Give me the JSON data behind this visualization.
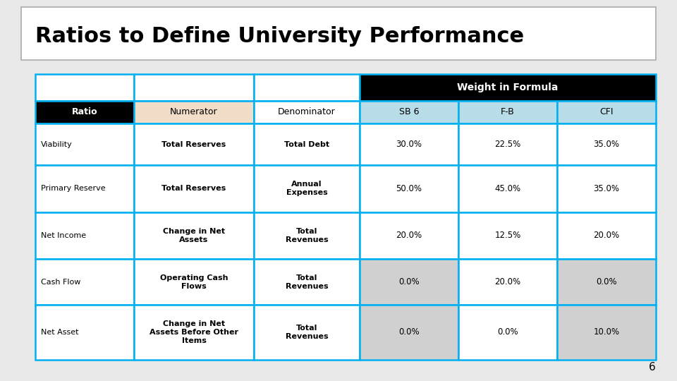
{
  "title": "Ratios to Define University Performance",
  "page_number": "6",
  "table": {
    "rows": [
      {
        "ratio": "Viability",
        "numerator": "Total Reserves",
        "denominator": "Total Debt",
        "sb6": "30.0%",
        "fb": "22.5%",
        "cfi": "35.0%",
        "shaded": false
      },
      {
        "ratio": "Primary Reserve",
        "numerator": "Total Reserves",
        "denominator": "Annual\nExpenses",
        "sb6": "50.0%",
        "fb": "45.0%",
        "cfi": "35.0%",
        "shaded": false
      },
      {
        "ratio": "Net Income",
        "numerator": "Change in Net\nAssets",
        "denominator": "Total\nRevenues",
        "sb6": "20.0%",
        "fb": "12.5%",
        "cfi": "20.0%",
        "shaded": false
      },
      {
        "ratio": "Cash Flow",
        "numerator": "Operating Cash\nFlows",
        "denominator": "Total\nRevenues",
        "sb6": "0.0%",
        "fb": "20.0%",
        "cfi": "0.0%",
        "shaded": true
      },
      {
        "ratio": "Net Asset",
        "numerator": "Change in Net\nAssets Before Other\nItems",
        "denominator": "Total\nRevenues",
        "sb6": "0.0%",
        "fb": "0.0%",
        "cfi": "10.0%",
        "shaded": true
      }
    ],
    "colors": {
      "header1_bg": "#000000",
      "header1_text": "#ffffff",
      "header2_ratio_bg": "#000000",
      "header2_ratio_text": "#ffffff",
      "header2_num_bg": "#f2ddc8",
      "header2_num_text": "#000000",
      "header2_denom_bg": "#ffffff",
      "header2_denom_text": "#000000",
      "header2_weight_bg": "#b8dce8",
      "header2_weight_text": "#000000",
      "row_ratio_text": "#000000",
      "row_num_text": "#000000",
      "row_denom_text": "#000000",
      "row_weight_text": "#000000",
      "shaded_bg": "#d0d0d0",
      "border_color": "#00b0f0",
      "page_bg": "#e8e8e8"
    }
  }
}
